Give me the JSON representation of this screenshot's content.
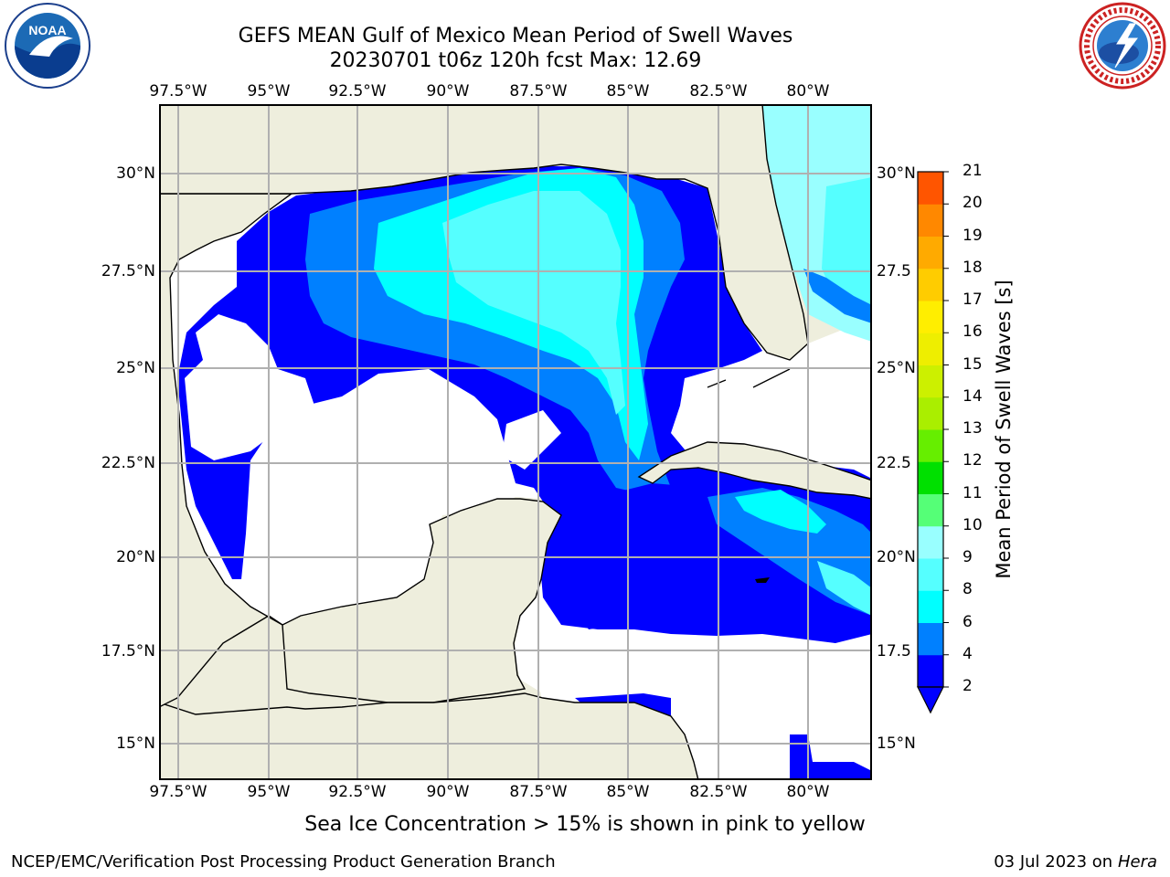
{
  "header": {
    "title_line1": "GEFS MEAN Gulf of Mexico Mean Period of Swell Waves",
    "title_line2": "20230701 t06z 120h fcst   Max: 12.69"
  },
  "map": {
    "lon_labels": [
      "97.5°W",
      "95°W",
      "92.5°W",
      "90°W",
      "87.5°W",
      "85°W",
      "82.5°W",
      "80°W"
    ],
    "lat_labels_left": [
      "30°N",
      "27.5°N",
      "25°N",
      "22.5°N",
      "20°N",
      "17.5°N",
      "15°N"
    ],
    "lat_labels_right": [
      "30°N",
      "27.5",
      "25°N",
      "22.5",
      "20°N",
      "17.5",
      "15°N"
    ],
    "colors": {
      "land": "#eeeedd",
      "ocean_low": "#ffffff",
      "band_2_4": "#0000ff",
      "band_4_6": "#0080ff",
      "band_6_8": "#00ffff",
      "band_8_9": "#99ffff",
      "band_9_10": "#66ff66",
      "band_10_11": "#33ee00",
      "band_11_12": "#a0f000",
      "grid": "#b0b0b0"
    }
  },
  "colorbar": {
    "label": "Mean Period of Swell Waves [s]",
    "ticks": [
      "2",
      "4",
      "6",
      "8",
      "9",
      "10",
      "11",
      "12",
      "13",
      "14",
      "15",
      "16",
      "17",
      "18",
      "19",
      "20",
      "21"
    ],
    "colors": [
      "#0000ff",
      "#0080ff",
      "#00ffff",
      "#55ffff",
      "#99ffff",
      "#55ff77",
      "#00e000",
      "#66ee00",
      "#aaee00",
      "#ccf000",
      "#eeee00",
      "#ffee00",
      "#ffcc00",
      "#ffaa00",
      "#ff8800",
      "#ff5500",
      "#ff2200",
      "#ff0000"
    ]
  },
  "footer": {
    "note": "Sea Ice Concentration > 15% is shown in pink to yellow",
    "left": "NCEP/EMC/Verification Post Processing Product Generation Branch",
    "right_date": "03 Jul 2023 on ",
    "right_machine": "Hera"
  },
  "logos": {
    "left": "noaa-logo",
    "right": "nws-logo"
  }
}
